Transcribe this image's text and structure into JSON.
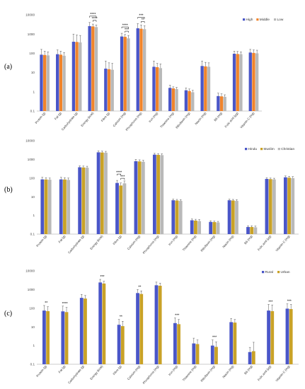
{
  "chart_data": [
    {
      "panel_label": "(a)",
      "type": "bar",
      "yscale": "log",
      "ylim": [
        0.1,
        10000
      ],
      "yticks": [
        "0.1",
        "1",
        "10",
        "100",
        "1000",
        "10000"
      ],
      "categories": [
        "Protein (g)",
        "Fat (g)",
        "Carbohydrate (g)",
        "Energy (kcal)",
        "Fibre (g)",
        "Calcium (mg)",
        "Phosphorus (mg)",
        "Iron (mg)",
        "Thiamine (mg)",
        "Riboflavin (mg)",
        "Niacin (mg)",
        "B6 (mg)",
        "Folic acid (µg)",
        "Vitamin C (mg)"
      ],
      "series": [
        {
          "name": "High",
          "color": "#4a56c8",
          "values": [
            85,
            90,
            400,
            2600,
            16,
            750,
            2000,
            20,
            1.6,
            1.2,
            22,
            0.6,
            95,
            110
          ],
          "err_hi": [
            160,
            150,
            1000,
            4000,
            40,
            1100,
            3500,
            40,
            2.2,
            1.6,
            40,
            0.85,
            130,
            160
          ]
        },
        {
          "name": "Middle",
          "color": "#f0842c",
          "values": [
            82,
            85,
            390,
            2500,
            15,
            720,
            1900,
            19,
            1.5,
            1.1,
            21,
            0.58,
            92,
            105
          ],
          "err_hi": [
            130,
            130,
            900,
            3300,
            32,
            950,
            3000,
            30,
            1.8,
            1.4,
            34,
            0.78,
            125,
            150
          ]
        },
        {
          "name": "Low",
          "color": "#b9b9b9",
          "values": [
            78,
            75,
            370,
            2300,
            14,
            600,
            1800,
            17,
            1.4,
            0.95,
            20,
            0.55,
            90,
            100
          ],
          "err_hi": [
            120,
            110,
            850,
            3000,
            30,
            850,
            2700,
            28,
            1.7,
            1.2,
            32,
            0.7,
            120,
            145
          ]
        }
      ],
      "significance": [
        {
          "from": 3,
          "to": 4,
          "series_from": 0,
          "series_to": 2,
          "label": "****"
        },
        {
          "from": 3,
          "to": 4,
          "series_from": 1,
          "series_to": 2,
          "label": "****"
        },
        {
          "from": 5,
          "to": 6,
          "series_from": 0,
          "series_to": 2,
          "label": "****"
        },
        {
          "from": 5,
          "to": 6,
          "series_from": 1,
          "series_to": 2,
          "label": "***"
        },
        {
          "from": 6,
          "to": 7,
          "series_from": 0,
          "series_to": 2,
          "label": "***"
        },
        {
          "from": 6,
          "to": 7,
          "series_from": 1,
          "series_to": 2,
          "label": "**"
        }
      ]
    },
    {
      "panel_label": "(b)",
      "type": "bar",
      "yscale": "log",
      "ylim": [
        0.1,
        10000
      ],
      "yticks": [
        "0.1",
        "1",
        "10",
        "100",
        "1000",
        "10000"
      ],
      "categories": [
        "Protein (g)",
        "Fat (g)",
        "Carbohydrate (g)",
        "Energy (kcal)",
        "Fibre (g)",
        "Calcium (mg)",
        "Phosphorus (mg)",
        "Iron (mg)",
        "Thiamine (mg)",
        "Riboflavin (mg)",
        "Niacin (mg)",
        "B6 (mg)",
        "Folic acid (µg)",
        "Vitamin C (mg)"
      ],
      "series": [
        {
          "name": "Hindu",
          "color": "#4a56c8",
          "values": [
            85,
            85,
            380,
            2400,
            55,
            800,
            1800,
            6.5,
            0.55,
            0.45,
            6.5,
            0.24,
            90,
            110
          ],
          "err_hi": [
            110,
            110,
            450,
            2900,
            75,
            1000,
            2100,
            7.5,
            0.65,
            0.52,
            7.5,
            0.28,
            105,
            130
          ]
        },
        {
          "name": "Muslim",
          "color": "#c9a227",
          "values": [
            84,
            84,
            370,
            2350,
            40,
            780,
            1750,
            6.3,
            0.53,
            0.44,
            6.3,
            0.24,
            88,
            105
          ],
          "err_hi": [
            105,
            105,
            440,
            2800,
            55,
            950,
            2050,
            7.2,
            0.62,
            0.5,
            7.2,
            0.28,
            100,
            125
          ]
        },
        {
          "name": "Christian",
          "color": "#b9b9b9",
          "values": [
            82,
            80,
            360,
            2300,
            52,
            750,
            1700,
            6.0,
            0.5,
            0.42,
            6.0,
            0.23,
            85,
            100
          ],
          "err_hi": [
            100,
            100,
            430,
            2700,
            70,
            900,
            2000,
            7.0,
            0.6,
            0.48,
            7.0,
            0.27,
            98,
            120
          ]
        }
      ],
      "significance": [
        {
          "from": 4,
          "to": 5,
          "series_from": 0,
          "series_to": 1,
          "label": "****"
        },
        {
          "from": 4,
          "to": 5,
          "series_from": 1,
          "series_to": 2,
          "label": "***"
        }
      ]
    },
    {
      "panel_label": "(c)",
      "type": "bar",
      "yscale": "log",
      "ylim": [
        0.1,
        10000
      ],
      "yticks": [
        "0.1",
        "1",
        "10",
        "100",
        "1000",
        "10000"
      ],
      "categories": [
        "Protein (g)",
        "Fat (g)",
        "Carbohydrate (g)",
        "Energy (kcal)",
        "Fibre (g)",
        "Calcium (mg)",
        "Phosphorus (mg)",
        "Iron (mg)",
        "Thiamine (mg)",
        "Riboflavin (mg)",
        "Niacin (mg)",
        "B6 (mg)",
        "Folic acid (µg)",
        "Vitamin C (mg)"
      ],
      "series": [
        {
          "name": "Rural",
          "color": "#4a56c8",
          "values": [
            75,
            68,
            360,
            2400,
            13,
            650,
            1700,
            16,
            1.3,
            1.0,
            18,
            0.45,
            75,
            95
          ],
          "err_hi": [
            140,
            130,
            550,
            3500,
            25,
            1000,
            2500,
            30,
            2.5,
            2.0,
            28,
            0.8,
            160,
            170
          ]
        },
        {
          "name": "Urban",
          "color": "#c9a227",
          "values": [
            70,
            62,
            330,
            2100,
            11,
            580,
            1600,
            14,
            1.2,
            0.85,
            17,
            0.5,
            70,
            90
          ],
          "err_hi": [
            120,
            110,
            480,
            2800,
            20,
            850,
            2200,
            25,
            2.0,
            1.6,
            25,
            1.5,
            150,
            160
          ]
        }
      ],
      "significance_single": [
        {
          "index": 0,
          "label": "**"
        },
        {
          "index": 1,
          "label": "****"
        },
        {
          "index": 3,
          "label": "***"
        },
        {
          "index": 4,
          "label": "**"
        },
        {
          "index": 5,
          "label": "**"
        },
        {
          "index": 7,
          "label": "***"
        },
        {
          "index": 9,
          "label": "***"
        },
        {
          "index": 12,
          "label": "***"
        },
        {
          "index": 13,
          "label": "***"
        }
      ]
    }
  ]
}
